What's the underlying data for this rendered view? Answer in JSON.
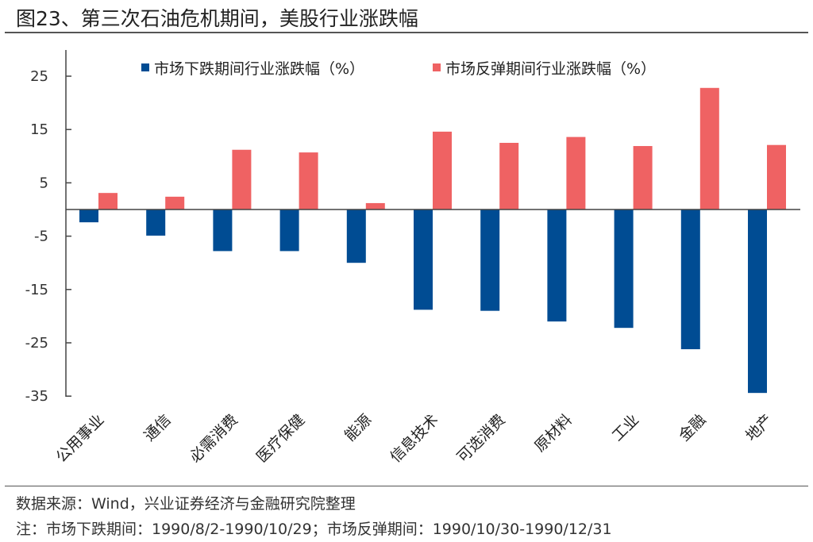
{
  "title": "图23、第三次石油危机期间，美股行业涨跌幅",
  "source": "数据来源：Wind，兴业证券经济与金融研究院整理",
  "note": "注：市场下跌期间：1990/8/2-1990/10/29；市场反弹期间：1990/10/30-1990/12/31",
  "chart_data": {
    "type": "bar",
    "title": "",
    "xlabel": "",
    "ylabel": "",
    "ylim": [
      -35,
      30
    ],
    "yticks": [
      25,
      15,
      5,
      -5,
      -15,
      -25,
      -35
    ],
    "grid": false,
    "legend": "top",
    "categories": [
      "公用事业",
      "通信",
      "必需消费",
      "医疗保健",
      "能源",
      "信息技术",
      "可选消费",
      "原材料",
      "工业",
      "金融",
      "地产"
    ],
    "series": [
      {
        "name": "市场下跌期间行业涨跌幅（%）",
        "color": "#004C93",
        "values": [
          -2.4,
          -4.9,
          -7.8,
          -7.8,
          -10.0,
          -18.8,
          -19.0,
          -21.0,
          -22.2,
          -26.2,
          -34.4
        ]
      },
      {
        "name": "市场反弹期间行业涨跌幅（%）",
        "color": "#EF6263",
        "values": [
          3.1,
          2.4,
          11.2,
          10.7,
          1.2,
          14.6,
          12.5,
          13.6,
          11.9,
          22.8,
          12.1
        ]
      }
    ]
  }
}
